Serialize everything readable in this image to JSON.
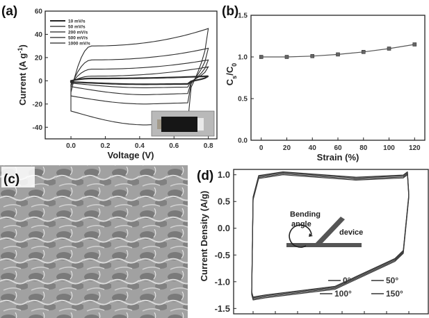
{
  "panels": {
    "a": "(a)",
    "b": "(b)",
    "c": "(c)",
    "d": "(d)"
  },
  "chart_data": [
    {
      "panel": "a",
      "type": "line",
      "xlabel": "Voltage (V)",
      "ylabel": "Current (A g-1)",
      "xlim": [
        -0.15,
        0.85
      ],
      "ylim": [
        -50,
        60
      ],
      "xticks": [
        "0.0",
        "0.2",
        "0.4",
        "0.6",
        "0.8"
      ],
      "xtick_values": [
        0.0,
        0.2,
        0.4,
        0.6,
        0.8
      ],
      "yticks": [
        "-40",
        "-20",
        "0",
        "20",
        "40",
        "60"
      ],
      "ytick_values": [
        -40,
        -20,
        0,
        20,
        40,
        60
      ],
      "legend": [
        "10 mV/s",
        "50 mV/s",
        "200 mV/s",
        "500 mV/s",
        "1000 mV/s"
      ],
      "legend_position": "top-left",
      "series": [
        {
          "name": "10 mV/s",
          "upper_start": 0,
          "upper_plateau": 2,
          "upper_end": 4,
          "lower_start": -1,
          "lower_plateau": -3
        },
        {
          "name": "50 mV/s",
          "upper_start": -1,
          "upper_plateau": 4,
          "upper_end": 12,
          "lower_start": -2,
          "lower_plateau": -6
        },
        {
          "name": "200 mV/s",
          "upper_start": -3,
          "upper_plateau": 10,
          "upper_end": 18,
          "lower_start": -5,
          "lower_plateau": -12
        },
        {
          "name": "500 mV/s",
          "upper_start": -5,
          "upper_plateau": 18,
          "upper_end": 28,
          "lower_start": -13,
          "lower_plateau": -20
        },
        {
          "name": "1000 mV/s",
          "upper_start": -10,
          "upper_plateau": 30,
          "upper_end": 45,
          "lower_start": -26,
          "lower_plateau": -38
        }
      ]
    },
    {
      "panel": "b",
      "type": "line",
      "xlabel": "Strain (%)",
      "ylabel": "Cs/C0",
      "ylabel_main": "C",
      "ylabel_sub1": "s",
      "ylabel_mid": "/C",
      "ylabel_sub2": "0",
      "xlim": [
        -8,
        128
      ],
      "ylim": [
        0,
        1.5
      ],
      "xticks": [
        "0",
        "20",
        "40",
        "60",
        "80",
        "100",
        "120"
      ],
      "xtick_values": [
        0,
        20,
        40,
        60,
        80,
        100,
        120
      ],
      "yticks": [
        "0.0",
        "0.5",
        "1.0",
        "1.5"
      ],
      "ytick_values": [
        0,
        0.5,
        1.0,
        1.5
      ],
      "x": [
        0,
        20,
        40,
        60,
        80,
        100,
        120
      ],
      "values": [
        1.0,
        1.0,
        1.01,
        1.03,
        1.06,
        1.1,
        1.15
      ]
    },
    {
      "panel": "d",
      "type": "line",
      "xlabel": "",
      "ylabel": "Current Density (A/g)",
      "ylim": [
        -1.6,
        1.1
      ],
      "yticks": [
        "1.0",
        "0.5",
        "0.0",
        "-0.5",
        "-1.0",
        "-1.5"
      ],
      "ytick_values": [
        1.0,
        0.5,
        0.0,
        -0.5,
        -1.0,
        -1.5
      ],
      "legend": [
        "0°",
        "50°",
        "100°",
        "150°"
      ],
      "legend_position": "bottom-right",
      "inset_labels": {
        "bending": "Bending",
        "angle": "angle",
        "device": "device"
      },
      "series": [
        {
          "name": "0°",
          "offset": 0.0
        },
        {
          "name": "50°",
          "offset": 0.02
        },
        {
          "name": "100°",
          "offset": -0.02
        },
        {
          "name": "150°",
          "offset": 0.035
        }
      ]
    }
  ]
}
